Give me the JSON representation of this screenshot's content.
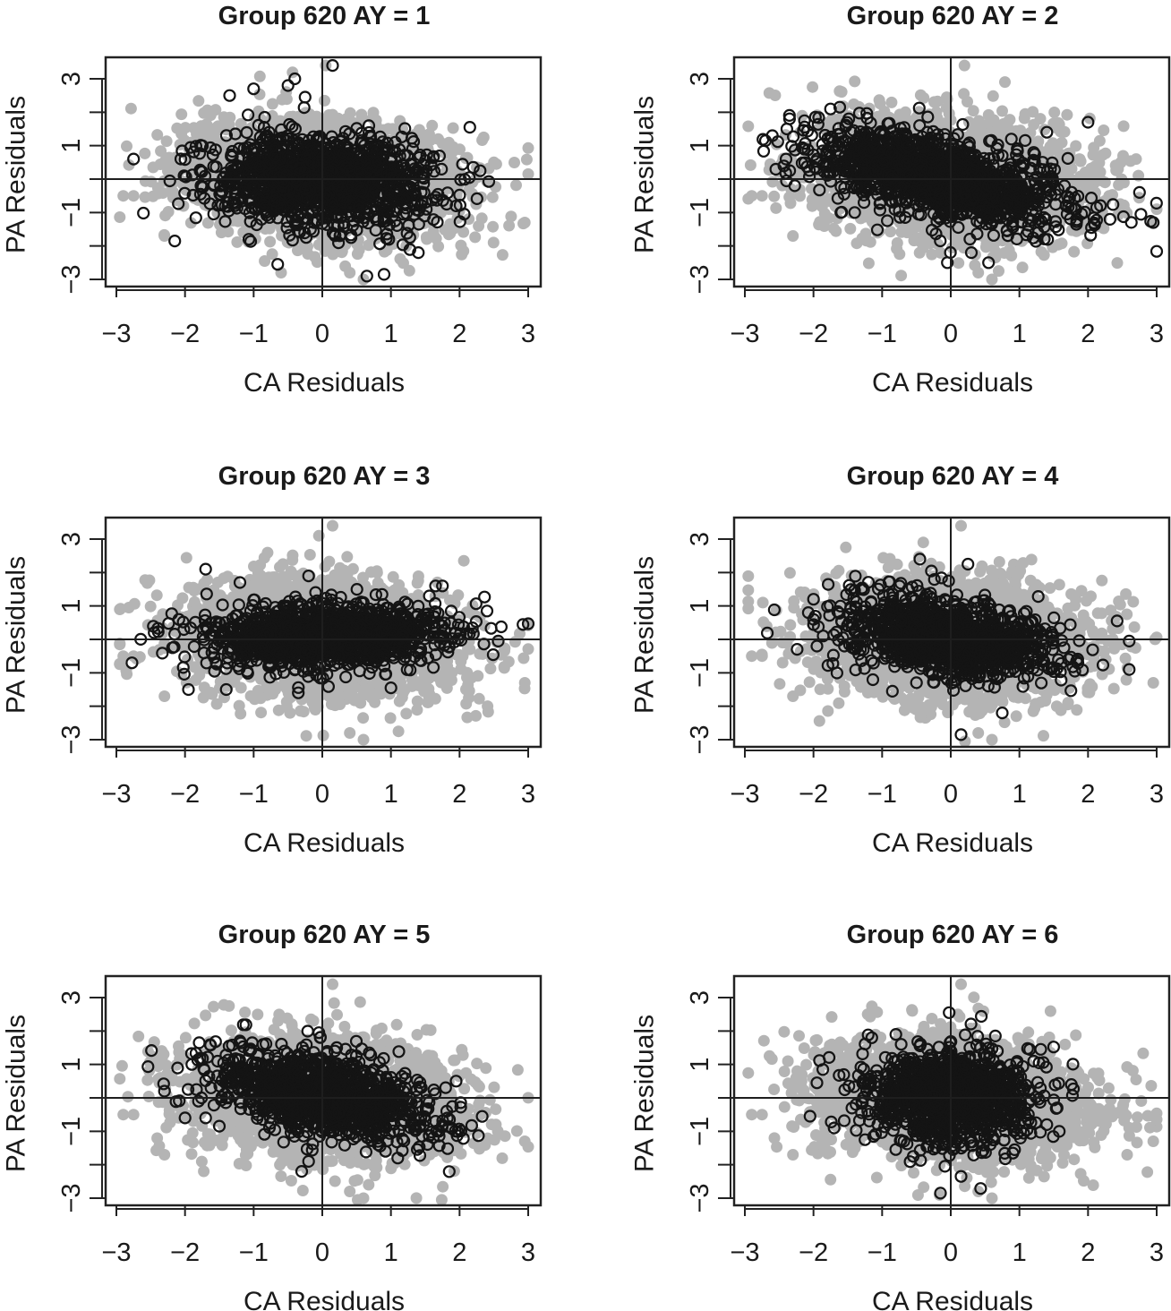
{
  "figure": {
    "layout": "3x2 grid of scatter panels",
    "colors": {
      "background_points": "#b4b4b4",
      "highlight_points_stroke": "#141414",
      "reference_lines": "#1e1e1e",
      "frame": "#222222"
    }
  },
  "chart_data": [
    {
      "type": "scatter",
      "title": "Group 620 AY = 1",
      "xlabel": "CA Residuals",
      "ylabel": "PA Residuals",
      "xlim": [
        -3.1,
        3.2
      ],
      "ylim": [
        -3.2,
        3.6
      ],
      "x_ticks": [
        -3,
        -2,
        -1,
        0,
        1,
        2,
        3
      ],
      "y_ticks": [
        -3,
        -2,
        -1,
        0,
        1,
        2,
        3
      ],
      "x_tick_labels": [
        "−3",
        "−2",
        "−1",
        "0",
        "1",
        "2",
        "3"
      ],
      "y_tick_labels": [
        "−3",
        "",
        "−1",
        "",
        "1",
        "",
        "3"
      ],
      "reference_lines": {
        "x": 0,
        "y": 0
      },
      "grid": false,
      "legend": "none",
      "series": [
        {
          "marker": "filled-circle",
          "color": "#b4b4b4",
          "n_points": 2800,
          "center": [
            0,
            0
          ],
          "sd": [
            0.95,
            0.85
          ],
          "corr": -0.15,
          "outliers": [
            [
              0.05,
              3.4
            ],
            [
              -2.9,
              -0.5
            ],
            [
              -2.75,
              -0.5
            ],
            [
              2.95,
              -1.3
            ],
            [
              -2.3,
              -1.7
            ],
            [
              0.6,
              -3.0
            ],
            [
              0.4,
              -2.8
            ],
            [
              -0.6,
              -2.8
            ],
            [
              1.6,
              1.6
            ],
            [
              2.5,
              0.5
            ]
          ]
        },
        {
          "marker": "open-circle",
          "color": "#141414",
          "n_points": 1500,
          "center": [
            0,
            -0.05
          ],
          "sd": [
            0.75,
            0.65
          ],
          "corr": -0.05,
          "outliers": [
            [
              0.15,
              3.4
            ],
            [
              -0.4,
              3.0
            ],
            [
              -0.5,
              2.8
            ],
            [
              -1.0,
              2.7
            ],
            [
              -1.35,
              2.5
            ],
            [
              2.15,
              1.55
            ],
            [
              2.3,
              0.25
            ],
            [
              2.2,
              0.35
            ],
            [
              -2.15,
              -1.85
            ],
            [
              -0.65,
              -2.55
            ],
            [
              1.4,
              -2.2
            ],
            [
              0.65,
              -2.9
            ],
            [
              0.9,
              -2.85
            ],
            [
              -2.75,
              0.6
            ],
            [
              1.95,
              -0.8
            ],
            [
              -0.25,
              2.45
            ]
          ]
        }
      ]
    },
    {
      "type": "scatter",
      "title": "Group 620 AY = 2",
      "xlabel": "CA Residuals",
      "ylabel": "PA Residuals",
      "xlim": [
        -3.1,
        3.2
      ],
      "ylim": [
        -3.2,
        3.6
      ],
      "x_ticks": [
        -3,
        -2,
        -1,
        0,
        1,
        2,
        3
      ],
      "y_ticks": [
        -3,
        -2,
        -1,
        0,
        1,
        2,
        3
      ],
      "x_tick_labels": [
        "−3",
        "−2",
        "−1",
        "0",
        "1",
        "2",
        "3"
      ],
      "y_tick_labels": [
        "−3",
        "",
        "−1",
        "",
        "1",
        "",
        "3"
      ],
      "reference_lines": {
        "x": 0,
        "y": 0
      },
      "grid": false,
      "legend": "none",
      "series": [
        {
          "marker": "filled-circle",
          "color": "#b4b4b4",
          "n_points": 2800,
          "center": [
            0,
            0
          ],
          "sd": [
            0.95,
            0.85
          ],
          "corr": -0.15,
          "outliers": [
            [
              0.2,
              3.4
            ],
            [
              -2.9,
              -0.5
            ],
            [
              -2.75,
              -0.5
            ],
            [
              2.95,
              -1.3
            ],
            [
              -2.3,
              -1.7
            ],
            [
              0.6,
              -3.0
            ],
            [
              0.4,
              -2.8
            ],
            [
              1.9,
              -1.5
            ],
            [
              2.7,
              0.6
            ]
          ]
        },
        {
          "marker": "open-circle",
          "color": "#141414",
          "n_points": 1500,
          "center": [
            -0.2,
            0.1
          ],
          "sd": [
            0.9,
            0.7
          ],
          "corr": -0.55,
          "outliers": [
            [
              -2.7,
              1.15
            ],
            [
              -2.6,
              1.3
            ],
            [
              -2.4,
              0.6
            ],
            [
              2.75,
              -0.4
            ],
            [
              2.95,
              -1.3
            ],
            [
              2.05,
              -1.45
            ],
            [
              -0.05,
              -2.5
            ],
            [
              0.55,
              -2.5
            ],
            [
              0.3,
              -2.2
            ],
            [
              1.4,
              1.4
            ],
            [
              2.0,
              1.7
            ],
            [
              -1.6,
              -1.0
            ],
            [
              -1.4,
              -1.0
            ]
          ]
        }
      ]
    },
    {
      "type": "scatter",
      "title": "Group 620 AY = 3",
      "xlabel": "CA Residuals",
      "ylabel": "PA Residuals",
      "xlim": [
        -3.1,
        3.2
      ],
      "ylim": [
        -3.2,
        3.6
      ],
      "x_ticks": [
        -3,
        -2,
        -1,
        0,
        1,
        2,
        3
      ],
      "y_ticks": [
        -3,
        -2,
        -1,
        0,
        1,
        2,
        3
      ],
      "x_tick_labels": [
        "−3",
        "−2",
        "−1",
        "0",
        "1",
        "2",
        "3"
      ],
      "y_tick_labels": [
        "−3",
        "",
        "−1",
        "",
        "1",
        "",
        "3"
      ],
      "reference_lines": {
        "x": 0,
        "y": 0
      },
      "grid": false,
      "legend": "none",
      "series": [
        {
          "marker": "filled-circle",
          "color": "#b4b4b4",
          "n_points": 2800,
          "center": [
            0,
            0
          ],
          "sd": [
            0.95,
            0.85
          ],
          "corr": -0.15,
          "outliers": [
            [
              0.15,
              3.4
            ],
            [
              -0.05,
              3.1
            ],
            [
              -2.9,
              -0.5
            ],
            [
              -2.75,
              -0.5
            ],
            [
              2.95,
              -1.3
            ],
            [
              -2.3,
              -1.7
            ],
            [
              0.6,
              -3.0
            ],
            [
              0.4,
              -2.8
            ]
          ]
        },
        {
          "marker": "open-circle",
          "color": "#141414",
          "n_points": 1400,
          "center": [
            0.05,
            0.1
          ],
          "sd": [
            0.85,
            0.45
          ],
          "corr": 0.1,
          "outliers": [
            [
              -1.7,
              2.1
            ],
            [
              -1.2,
              1.7
            ],
            [
              -0.2,
              1.9
            ],
            [
              -2.45,
              0.2
            ],
            [
              2.4,
              0.85
            ],
            [
              -1.95,
              -1.5
            ],
            [
              -1.4,
              -1.5
            ],
            [
              -0.35,
              -1.6
            ],
            [
              1.0,
              -1.45
            ],
            [
              1.65,
              1.6
            ],
            [
              1.75,
              1.6
            ]
          ]
        }
      ]
    },
    {
      "type": "scatter",
      "title": "Group 620 AY = 4",
      "xlabel": "CA Residuals",
      "ylabel": "PA Residuals",
      "xlim": [
        -3.1,
        3.2
      ],
      "ylim": [
        -3.2,
        3.6
      ],
      "x_ticks": [
        -3,
        -2,
        -1,
        0,
        1,
        2,
        3
      ],
      "y_ticks": [
        -3,
        -2,
        -1,
        0,
        1,
        2,
        3
      ],
      "x_tick_labels": [
        "−3",
        "−2",
        "−1",
        "0",
        "1",
        "2",
        "3"
      ],
      "y_tick_labels": [
        "−3",
        "",
        "−1",
        "",
        "1",
        "",
        "3"
      ],
      "reference_lines": {
        "x": 0,
        "y": 0
      },
      "grid": false,
      "legend": "none",
      "series": [
        {
          "marker": "filled-circle",
          "color": "#b4b4b4",
          "n_points": 2800,
          "center": [
            0,
            0
          ],
          "sd": [
            0.95,
            0.85
          ],
          "corr": -0.15,
          "outliers": [
            [
              0.15,
              3.4
            ],
            [
              -2.9,
              -0.5
            ],
            [
              -2.75,
              -0.5
            ],
            [
              2.95,
              -1.3
            ],
            [
              -2.3,
              -1.7
            ],
            [
              0.6,
              -3.0
            ],
            [
              0.4,
              -2.8
            ],
            [
              -0.4,
              2.9
            ]
          ]
        },
        {
          "marker": "open-circle",
          "color": "#141414",
          "n_points": 1300,
          "center": [
            0,
            0.05
          ],
          "sd": [
            0.75,
            0.6
          ],
          "corr": -0.3,
          "outliers": [
            [
              -2.0,
              1.2
            ],
            [
              -2.0,
              0.6
            ],
            [
              -1.95,
              -0.2
            ],
            [
              -1.3,
              1.5
            ],
            [
              -0.45,
              2.4
            ],
            [
              0.25,
              2.25
            ],
            [
              2.6,
              -0.05
            ],
            [
              2.6,
              -0.9
            ],
            [
              0.15,
              -2.85
            ],
            [
              0.75,
              -2.2
            ],
            [
              -0.85,
              -1.55
            ],
            [
              1.85,
              -0.6
            ]
          ]
        }
      ]
    },
    {
      "type": "scatter",
      "title": "Group 620 AY = 5",
      "xlabel": "CA Residuals",
      "ylabel": "PA Residuals",
      "xlim": [
        -3.1,
        3.2
      ],
      "ylim": [
        -3.2,
        3.6
      ],
      "x_ticks": [
        -3,
        -2,
        -1,
        0,
        1,
        2,
        3
      ],
      "y_ticks": [
        -3,
        -2,
        -1,
        0,
        1,
        2,
        3
      ],
      "x_tick_labels": [
        "−3",
        "−2",
        "−1",
        "0",
        "1",
        "2",
        "3"
      ],
      "y_tick_labels": [
        "−3",
        "",
        "−1",
        "",
        "1",
        "",
        "3"
      ],
      "reference_lines": {
        "x": 0,
        "y": 0
      },
      "grid": false,
      "legend": "none",
      "series": [
        {
          "marker": "filled-circle",
          "color": "#b4b4b4",
          "n_points": 2800,
          "center": [
            0,
            0
          ],
          "sd": [
            0.95,
            0.85
          ],
          "corr": -0.15,
          "outliers": [
            [
              0.15,
              3.4
            ],
            [
              -2.9,
              -0.5
            ],
            [
              -2.75,
              -0.5
            ],
            [
              2.95,
              -1.3
            ],
            [
              -2.3,
              -1.7
            ],
            [
              0.6,
              -3.0
            ],
            [
              0.4,
              -2.8
            ],
            [
              1.9,
              -1.5
            ]
          ]
        },
        {
          "marker": "open-circle",
          "color": "#141414",
          "n_points": 1300,
          "center": [
            0.05,
            0.05
          ],
          "sd": [
            0.75,
            0.65
          ],
          "corr": -0.45,
          "outliers": [
            [
              -2.3,
              0.2
            ],
            [
              -2.0,
              -0.6
            ],
            [
              -1.9,
              1.0
            ],
            [
              -1.7,
              -0.6
            ],
            [
              1.95,
              0.5
            ],
            [
              1.65,
              -0.7
            ],
            [
              1.1,
              -1.8
            ],
            [
              -0.3,
              -2.2
            ],
            [
              -0.2,
              -1.9
            ],
            [
              1.7,
              -1.0
            ],
            [
              -0.05,
              1.95
            ],
            [
              -1.2,
              1.7
            ]
          ]
        }
      ]
    },
    {
      "type": "scatter",
      "title": "Group 620 AY = 6",
      "xlabel": "CA Residuals",
      "ylabel": "PA Residuals",
      "xlim": [
        -3.1,
        3.2
      ],
      "ylim": [
        -3.2,
        3.6
      ],
      "x_ticks": [
        -3,
        -2,
        -1,
        0,
        1,
        2,
        3
      ],
      "y_ticks": [
        -3,
        -2,
        -1,
        0,
        1,
        2,
        3
      ],
      "x_tick_labels": [
        "−3",
        "−2",
        "−1",
        "0",
        "1",
        "2",
        "3"
      ],
      "y_tick_labels": [
        "−3",
        "",
        "−1",
        "",
        "1",
        "",
        "3"
      ],
      "reference_lines": {
        "x": 0,
        "y": 0
      },
      "grid": false,
      "legend": "none",
      "series": [
        {
          "marker": "filled-circle",
          "color": "#b4b4b4",
          "n_points": 2800,
          "center": [
            0,
            0
          ],
          "sd": [
            0.95,
            0.85
          ],
          "corr": -0.15,
          "outliers": [
            [
              0.15,
              3.4
            ],
            [
              -2.9,
              -0.5
            ],
            [
              -2.75,
              -0.5
            ],
            [
              2.95,
              -1.3
            ],
            [
              -2.3,
              -1.7
            ],
            [
              0.6,
              -3.0
            ],
            [
              0.4,
              -2.8
            ],
            [
              2.7,
              0.55
            ]
          ]
        },
        {
          "marker": "open-circle",
          "color": "#141414",
          "n_points": 1200,
          "center": [
            0,
            0.05
          ],
          "sd": [
            0.6,
            0.7
          ],
          "corr": -0.05,
          "outliers": [
            [
              -1.95,
              0.45
            ],
            [
              -2.05,
              -0.55
            ],
            [
              -1.7,
              -0.9
            ],
            [
              -1.15,
              1.8
            ],
            [
              -0.8,
              1.9
            ],
            [
              0.65,
              1.85
            ],
            [
              1.15,
              1.45
            ],
            [
              1.55,
              -0.3
            ],
            [
              1.4,
              -0.8
            ],
            [
              -0.15,
              -2.85
            ],
            [
              0.15,
              -2.35
            ],
            [
              -1.25,
              -1.25
            ]
          ]
        }
      ]
    }
  ]
}
